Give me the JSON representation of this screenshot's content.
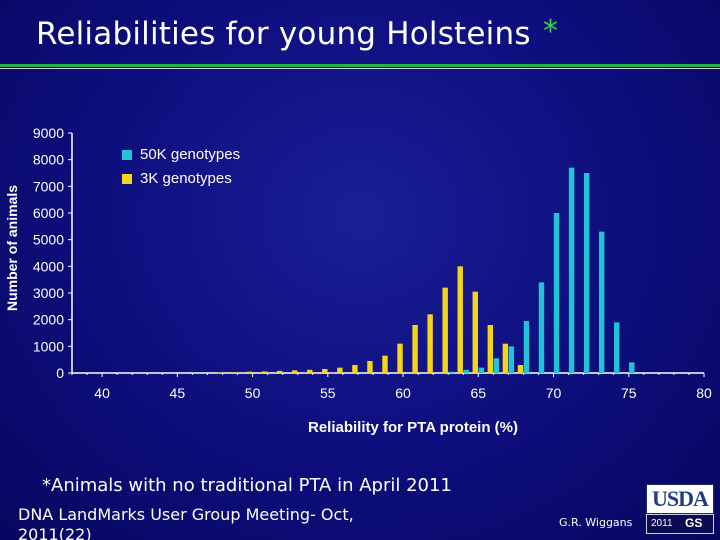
{
  "slide": {
    "title": "Reliabilities for young Holsteins",
    "title_star": "*",
    "footnote": "*Animals with no traditional PTA in April 2011",
    "footer_left": "DNA LandMarks User Group Meeting- Oct, 2011(22)",
    "footer_author": "G.R. Wiggans",
    "logo": {
      "text": "USDA",
      "year": "2011",
      "mark": "GS"
    }
  },
  "chart_data": {
    "type": "bar",
    "title": "",
    "xlabel": "Reliability for PTA protein (%)",
    "ylabel": "Number of animals",
    "ylim": [
      0,
      9000
    ],
    "xlim": [
      38,
      80
    ],
    "yticks": [
      "9000",
      "8000",
      "7000",
      "6000",
      "5000",
      "4000",
      "3000",
      "2000",
      "1000",
      "0"
    ],
    "xticks": [
      "40",
      "45",
      "50",
      "55",
      "60",
      "65",
      "70",
      "75",
      "80"
    ],
    "legend": {
      "position": "top-left"
    },
    "colors": {
      "50K genotypes": "#22c3d4",
      "3K genotypes": "#f3d51a"
    },
    "series": [
      {
        "name": "50K genotypes",
        "x": [
          63,
          64,
          65,
          66,
          67,
          68,
          69,
          70,
          71,
          72,
          73,
          74,
          75
        ],
        "values": [
          50,
          120,
          200,
          550,
          1000,
          1950,
          3400,
          6000,
          7700,
          7500,
          5300,
          1900,
          400
        ]
      },
      {
        "name": "3K genotypes",
        "x": [
          48,
          49,
          50,
          51,
          52,
          53,
          54,
          55,
          56,
          57,
          58,
          59,
          60,
          61,
          62,
          63,
          64,
          65,
          66,
          67,
          68
        ],
        "values": [
          20,
          30,
          50,
          60,
          80,
          100,
          120,
          150,
          200,
          300,
          450,
          650,
          1100,
          1800,
          2200,
          3200,
          4000,
          3050,
          1800,
          1100,
          300
        ]
      }
    ]
  }
}
